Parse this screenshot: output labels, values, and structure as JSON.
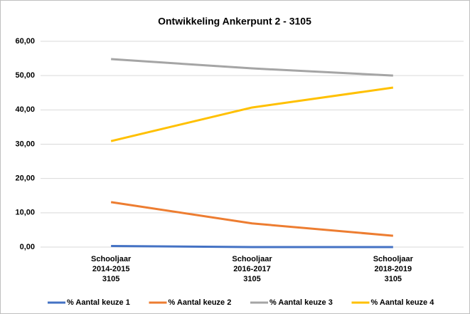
{
  "chart_data": {
    "type": "line",
    "title": "Ontwikkeling Ankerpunt 2 - 3105",
    "categories": [
      "Schooljaar\n2014-2015\n3105",
      "Schooljaar\n2016-2017\n3105",
      "Schooljaar\n2018-2019\n3105"
    ],
    "series": [
      {
        "name": "% Aantal keuze 1",
        "color": "#4472c4",
        "values": [
          0.3,
          0.0,
          0.0
        ]
      },
      {
        "name": "% Aantal keuze 2",
        "color": "#ed7d31",
        "values": [
          13.1,
          6.9,
          3.3
        ]
      },
      {
        "name": "% Aantal keuze 3",
        "color": "#a5a5a5",
        "values": [
          54.8,
          52.1,
          50.0
        ]
      },
      {
        "name": "% Aantal keuze 4",
        "color": "#ffc000",
        "values": [
          30.9,
          40.7,
          46.5
        ]
      }
    ],
    "ylim": [
      0,
      60
    ],
    "yticks": [
      {
        "value": 0,
        "label": "0,00"
      },
      {
        "value": 10,
        "label": "10,00"
      },
      {
        "value": 20,
        "label": "20,00"
      },
      {
        "value": 30,
        "label": "30,00"
      },
      {
        "value": 40,
        "label": "40,00"
      },
      {
        "value": 50,
        "label": "50,00"
      },
      {
        "value": 60,
        "label": "60,00"
      }
    ],
    "grid": true,
    "legend": "bottom"
  }
}
